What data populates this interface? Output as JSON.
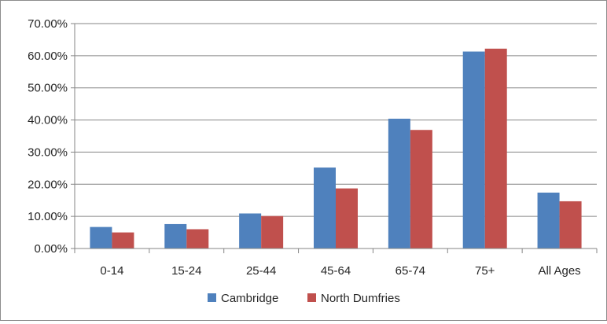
{
  "chart_data": {
    "type": "bar",
    "categories": [
      "0-14",
      "15-24",
      "25-44",
      "45-64",
      "65-74",
      "75+",
      "All Ages"
    ],
    "series": [
      {
        "name": "Cambridge",
        "color": "#4f81bd",
        "values": [
          6.7,
          7.6,
          10.9,
          25.2,
          40.4,
          61.3,
          17.4
        ]
      },
      {
        "name": "North Dumfries",
        "color": "#c0504d",
        "values": [
          5.0,
          6.0,
          10.1,
          18.7,
          36.9,
          62.2,
          14.7
        ]
      }
    ],
    "y_ticks": [
      "0.00%",
      "10.00%",
      "20.00%",
      "30.00%",
      "40.00%",
      "50.00%",
      "60.00%",
      "70.00%"
    ],
    "ylim": [
      0,
      70
    ],
    "title": "",
    "xlabel": "",
    "ylabel": "",
    "grid": true,
    "legend": "bottom"
  }
}
